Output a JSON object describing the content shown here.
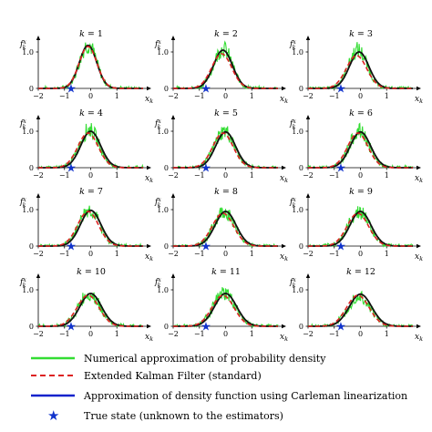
{
  "chart_data": {
    "type": "line",
    "layout": "4x3 small multiples",
    "panels": [
      {
        "title": "k = 1",
        "label": "1"
      },
      {
        "title": "k = 2",
        "label": "2"
      },
      {
        "title": "k = 3",
        "label": "3"
      },
      {
        "title": "k = 4",
        "label": "4"
      },
      {
        "title": "k = 5",
        "label": "5"
      },
      {
        "title": "k = 6",
        "label": "6"
      },
      {
        "title": "k = 7",
        "label": "7"
      },
      {
        "title": "k = 8",
        "label": "8"
      },
      {
        "title": "k = 9",
        "label": "9"
      },
      {
        "title": "k = 10",
        "label": "10"
      },
      {
        "title": "k = 11",
        "label": "11"
      },
      {
        "title": "k = 12",
        "label": "12"
      }
    ],
    "k_values": [
      1,
      2,
      3,
      4,
      5,
      6,
      7,
      8,
      9,
      10,
      11,
      12
    ],
    "xlabel": "x_k",
    "ylabel": "f_k^x",
    "xlim": [
      -2,
      2
    ],
    "ylim": [
      0,
      1.2
    ],
    "xticks": [
      "−2",
      "−1",
      "0",
      "1"
    ],
    "yticks": [
      "0",
      "1.0"
    ],
    "true_state_x": [
      -0.75,
      -0.75,
      -0.75,
      -0.75,
      -0.75,
      -0.75,
      -0.75,
      -0.75,
      -0.75,
      -0.75,
      -0.75,
      -0.75
    ],
    "densities": {
      "numerical": {
        "mean": [
          -0.1,
          -0.1,
          -0.1,
          -0.05,
          -0.05,
          -0.05,
          -0.05,
          -0.05,
          -0.05,
          -0.05,
          -0.05,
          -0.05
        ],
        "peak": [
          1.2,
          1.1,
          1.05,
          1.05,
          1.0,
          1.0,
          1.0,
          0.95,
          0.95,
          0.9,
          0.9,
          0.85
        ],
        "sigma": [
          0.33,
          0.35,
          0.36,
          0.37,
          0.38,
          0.38,
          0.39,
          0.4,
          0.4,
          0.41,
          0.42,
          0.43
        ]
      },
      "ekf": {
        "mean": [
          -0.1,
          -0.15,
          -0.15,
          -0.1,
          -0.1,
          -0.1,
          -0.1,
          -0.1,
          -0.1,
          -0.1,
          -0.1,
          -0.1
        ],
        "peak": [
          1.15,
          0.95,
          0.9,
          0.95,
          0.95,
          0.95,
          0.95,
          0.9,
          0.9,
          0.85,
          0.85,
          0.85
        ],
        "sigma": [
          0.34,
          0.38,
          0.39,
          0.39,
          0.39,
          0.39,
          0.4,
          0.41,
          0.41,
          0.42,
          0.42,
          0.43
        ]
      },
      "carleman": {
        "mean": [
          -0.1,
          -0.1,
          -0.05,
          0.0,
          0.0,
          0.0,
          0.0,
          0.0,
          0.0,
          0.0,
          0.0,
          0.0
        ],
        "peak": [
          1.18,
          1.05,
          1.0,
          1.0,
          0.98,
          0.98,
          0.98,
          0.95,
          0.95,
          0.9,
          0.9,
          0.88
        ],
        "sigma": [
          0.33,
          0.36,
          0.37,
          0.38,
          0.38,
          0.39,
          0.39,
          0.4,
          0.4,
          0.41,
          0.42,
          0.43
        ]
      }
    },
    "series": [
      {
        "name": "Numerical approximation of probability density",
        "color": "#33dd33",
        "style": "solid"
      },
      {
        "name": "Extended Kalman Filter (standard)",
        "color": "#dd2222",
        "style": "dashed"
      },
      {
        "name": "Approximation of density function using Carleman linearization",
        "color": "#1122cc",
        "style": "solid"
      },
      {
        "name": "True state (unknown to the estimators)",
        "color": "#1133cc",
        "style": "star"
      }
    ],
    "grid": false,
    "legend_position": "bottom"
  }
}
